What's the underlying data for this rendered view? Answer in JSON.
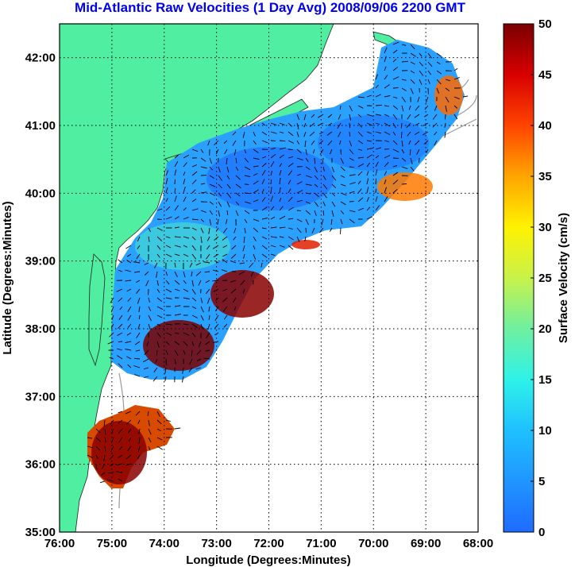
{
  "title": "Mid-Atlantic Raw Velocities (1 Day Avg) 2008/09/06 2200 GMT",
  "colors": {
    "title": "#0000ee",
    "land": "#50eea0",
    "ocean": "#ffffff",
    "coast": "#222222",
    "bathymetry": "#999999",
    "grid": "#000000",
    "vector": "#000000"
  },
  "map": {
    "xlabel": "Longitude (Degrees:Minutes)",
    "ylabel": "Latitude (Degrees:Minutes)",
    "lon_ticks": [
      "76:00",
      "75:00",
      "74:00",
      "73:00",
      "72:00",
      "71:00",
      "70:00",
      "69:00",
      "68:00"
    ],
    "lat_ticks": [
      "35:00",
      "36:00",
      "37:00",
      "38:00",
      "39:00",
      "40:00",
      "41:00",
      "42:00"
    ],
    "lon_range": [
      -76,
      -68
    ],
    "lat_range": [
      35,
      42.5
    ],
    "grid": "dotted"
  },
  "colorbar": {
    "label": "Surface Velocity (cm/s)",
    "ticks": [
      "0",
      "5",
      "10",
      "15",
      "20",
      "25",
      "30",
      "35",
      "40",
      "45",
      "50"
    ],
    "range": [
      0,
      50
    ],
    "colormap": "jet"
  }
}
